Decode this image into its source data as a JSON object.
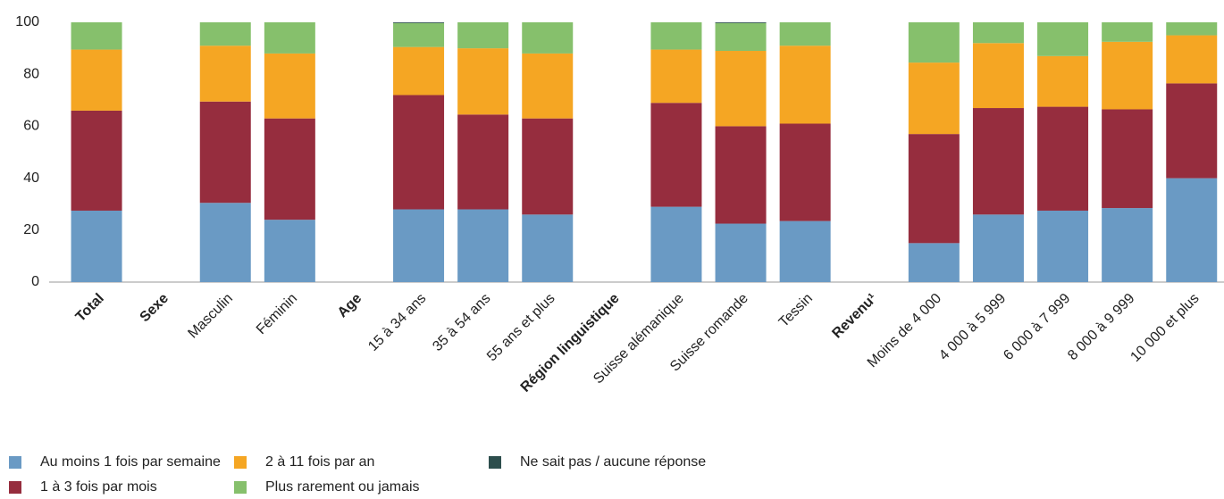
{
  "chart_data": {
    "type": "stacked_bar",
    "categories": [
      "Total",
      "Sexe",
      "Masculin",
      "Féminin",
      "Age",
      "15 à 34 ans",
      "35 à 54 ans",
      "55 ans et plus",
      "Région linguistique",
      "Suisse alémanique",
      "Suisse romande",
      "Tessin",
      "Revenu¹",
      "Moins de 4 000",
      "4 000 à 5 999",
      "6 000 à 7 999",
      "8 000 à 9 999",
      "10 000 et plus"
    ],
    "series": [
      {
        "name": "Au moins 1 fois par semaine",
        "color": "#6a9ac4",
        "values": [
          27.5,
          null,
          30.5,
          24,
          null,
          28,
          28,
          26,
          null,
          29,
          22.5,
          23.5,
          null,
          15,
          26,
          27.5,
          28.5,
          40
        ]
      },
      {
        "name": "1 à 3 fois par mois",
        "color": "#962d3e",
        "values": [
          38.5,
          null,
          39,
          39,
          null,
          44,
          36.5,
          37,
          null,
          40,
          37.5,
          37.5,
          null,
          42,
          41,
          40,
          38,
          36.5
        ]
      },
      {
        "name": "2 à 11 fois par an",
        "color": "#f5a623",
        "values": [
          23.5,
          null,
          21.5,
          25,
          null,
          18.5,
          25.5,
          25,
          null,
          20.5,
          29,
          30,
          null,
          27.5,
          25,
          19.5,
          26,
          18.5
        ]
      },
      {
        "name": "Plus rarement ou jamais",
        "color": "#86c06c",
        "values": [
          10.5,
          null,
          9,
          12,
          null,
          9.2,
          10,
          12,
          null,
          10.5,
          10.7,
          9,
          null,
          15.5,
          8,
          13,
          7.5,
          5
        ]
      },
      {
        "name": "Ne sait pas / aucune réponse",
        "color": "#2d4e4d",
        "values": [
          0,
          null,
          0,
          0,
          null,
          0.3,
          0,
          0,
          null,
          0,
          0.3,
          0,
          null,
          0,
          0,
          0,
          0,
          0
        ]
      }
    ],
    "ylim": [
      0,
      100
    ],
    "yticks": [
      0,
      20,
      40,
      60,
      80,
      100
    ],
    "grid": false
  }
}
